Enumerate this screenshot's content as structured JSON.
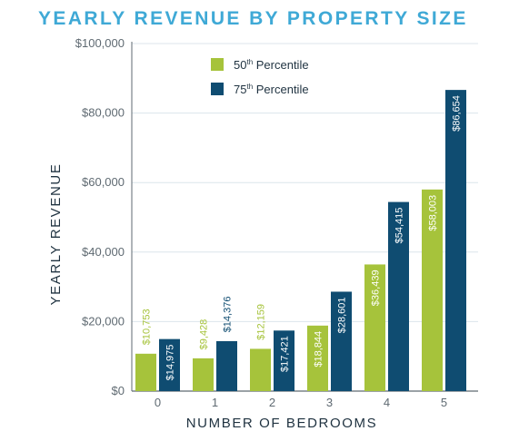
{
  "chart_data": {
    "type": "bar",
    "title": "YEARLY REVENUE BY PROPERTY SIZE",
    "xlabel": "NUMBER OF BEDROOMS",
    "ylabel": "YEARLY REVENUE",
    "categories": [
      "0",
      "1",
      "2",
      "3",
      "4",
      "5"
    ],
    "ylim": [
      0,
      100000
    ],
    "yticks": [
      0,
      20000,
      40000,
      60000,
      80000,
      100000
    ],
    "ytick_labels": [
      "$0",
      "$20,000",
      "$40,000",
      "$60,000",
      "$80,000",
      "$100,000"
    ],
    "grid": true,
    "legend_position": "top-left",
    "series": [
      {
        "name": "50th Percentile",
        "legend_base": "50",
        "legend_sup": "th",
        "legend_rest": " Percentile",
        "color": "#a6c33b",
        "values": [
          10753,
          9428,
          12159,
          18844,
          36439,
          58003
        ],
        "labels": [
          "$10,753",
          "$9,428",
          "$12,159",
          "$18,844",
          "$36,439",
          "$58,003"
        ]
      },
      {
        "name": "75th Percentile",
        "legend_base": "75",
        "legend_sup": "th",
        "legend_rest": " Percentile",
        "color": "#0f4c71",
        "values": [
          14975,
          14376,
          17421,
          28601,
          54415,
          86654
        ],
        "labels": [
          "$14,975",
          "$14,376",
          "$17,421",
          "$28,601",
          "$54,415",
          "$86,654"
        ]
      }
    ]
  },
  "colors": {
    "title": "#3fa9d6",
    "grid": "#dce5eb",
    "axis": "#5f6a72",
    "label_on_dark": "#ffffff"
  }
}
